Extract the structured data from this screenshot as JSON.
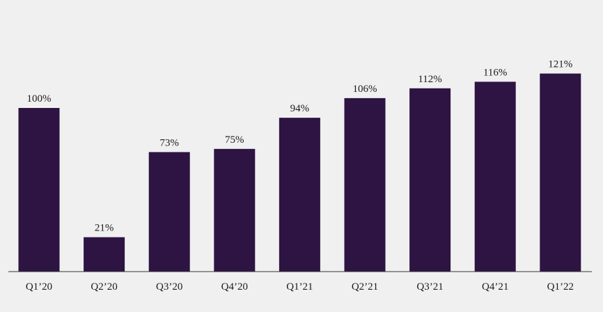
{
  "chart_data": {
    "type": "bar",
    "categories": [
      "Q1'20",
      "Q2'20",
      "Q3'20",
      "Q4'20",
      "Q1'21",
      "Q2'21",
      "Q3'21",
      "Q4'21",
      "Q1'22"
    ],
    "values": [
      100,
      21,
      73,
      75,
      94,
      106,
      112,
      116,
      121
    ],
    "value_labels": [
      "100%",
      "21%",
      "73%",
      "75%",
      "94%",
      "106%",
      "112%",
      "116%",
      "121%"
    ],
    "tick_labels": [
      "Q1’20",
      "Q2’20",
      "Q3’20",
      "Q4’20",
      "Q1’21",
      "Q2’21",
      "Q3’21",
      "Q4’21",
      "Q1’22"
    ],
    "title": "",
    "xlabel": "",
    "ylabel": "",
    "ylim": [
      0,
      150
    ],
    "grid": false,
    "bar_color": "#2d1442",
    "axis_color": "#333333",
    "background": "#f0f0f0"
  }
}
